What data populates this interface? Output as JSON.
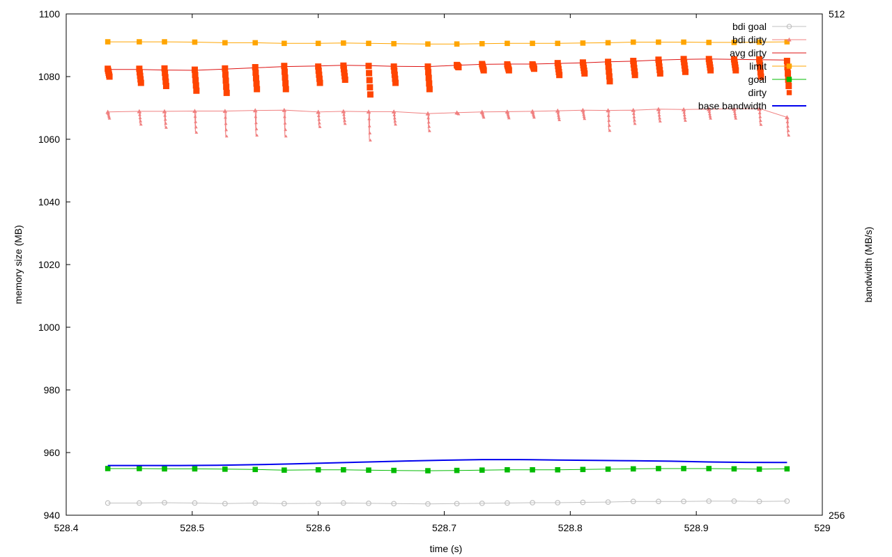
{
  "chart_data": {
    "type": "line",
    "xlabel": "time (s)",
    "ylabel": "memory size (MB)",
    "y2label": "bandwidth (MB/s)",
    "xlim": [
      528.4,
      529
    ],
    "ylim": [
      940,
      1100
    ],
    "y2lim": [
      256,
      512
    ],
    "x_ticks": [
      "528.4",
      "528.5",
      "528.6",
      "528.7",
      "528.8",
      "528.9",
      "529"
    ],
    "y_ticks": [
      "940",
      "960",
      "980",
      "1000",
      "1020",
      "1040",
      "1060",
      "1080",
      "1100"
    ],
    "y2_ticks": [
      "256",
      "512"
    ],
    "grid": false,
    "legend_position": "top-right",
    "series": [
      {
        "name": "bdi goal",
        "color": "#c0c0c0",
        "marker": "circle",
        "x": [
          528.433,
          528.458,
          528.478,
          528.502,
          528.526,
          528.55,
          528.573,
          528.6,
          528.62,
          528.64,
          528.66,
          528.687,
          528.71,
          528.73,
          528.75,
          528.77,
          528.79,
          528.81,
          528.83,
          528.85,
          528.87,
          528.89,
          528.91,
          528.93,
          528.95,
          528.972
        ],
        "y": [
          943.9,
          943.9,
          944.0,
          943.9,
          943.7,
          943.9,
          943.7,
          943.8,
          943.9,
          943.8,
          943.7,
          943.6,
          943.7,
          943.8,
          943.9,
          944.0,
          944.0,
          944.1,
          944.2,
          944.4,
          944.4,
          944.4,
          944.5,
          944.5,
          944.4,
          944.5
        ]
      },
      {
        "name": "bdi dirty",
        "color": "#f08080",
        "marker": "triangle",
        "x": [
          528.433,
          528.458,
          528.478,
          528.502,
          528.526,
          528.55,
          528.573,
          528.6,
          528.62,
          528.64,
          528.66,
          528.687,
          528.71,
          528.73,
          528.75,
          528.77,
          528.79,
          528.81,
          528.83,
          528.85,
          528.87,
          528.89,
          528.91,
          528.93,
          528.95,
          528.972
        ],
        "y": [
          1068.7,
          1068.9,
          1068.9,
          1069.0,
          1069.0,
          1069.2,
          1069.3,
          1068.7,
          1068.9,
          1068.8,
          1068.8,
          1068.2,
          1068.5,
          1068.7,
          1068.8,
          1068.9,
          1069.1,
          1069.3,
          1069.2,
          1069.3,
          1069.6,
          1069.5,
          1069.6,
          1069.7,
          1069.7,
          1067.0
        ],
        "dips": [
          1066.7,
          1064.8,
          1063.8,
          1062.2,
          1061.0,
          1061.3,
          1061.0,
          1064.0,
          1065.0,
          1059.7,
          1064.8,
          1062.7,
          1068.1,
          1067.0,
          1066.8,
          1067.0,
          1066.2,
          1066.6,
          1062.8,
          1065.0,
          1065.8,
          1066.0,
          1066.7,
          1066.7,
          1064.7,
          1061.3
        ]
      },
      {
        "name": "avg dirty",
        "color": "#dd1111",
        "marker": "none",
        "x": [
          528.433,
          528.458,
          528.478,
          528.502,
          528.526,
          528.55,
          528.573,
          528.6,
          528.62,
          528.64,
          528.66,
          528.687,
          528.71,
          528.73,
          528.75,
          528.77,
          528.79,
          528.81,
          528.83,
          528.85,
          528.87,
          528.89,
          528.91,
          528.93,
          528.95,
          528.972
        ],
        "y": [
          1082.3,
          1082.3,
          1082.1,
          1082.0,
          1082.4,
          1082.8,
          1083.2,
          1083.4,
          1083.6,
          1083.5,
          1083.3,
          1083.2,
          1083.6,
          1083.9,
          1084.0,
          1084.0,
          1084.2,
          1084.4,
          1084.7,
          1084.9,
          1085.3,
          1085.5,
          1085.6,
          1085.5,
          1085.4,
          1085.3
        ]
      },
      {
        "name": "limit",
        "color": "#ffa500",
        "marker": "square",
        "x": [
          528.433,
          528.458,
          528.478,
          528.502,
          528.526,
          528.55,
          528.573,
          528.6,
          528.62,
          528.64,
          528.66,
          528.687,
          528.71,
          528.73,
          528.75,
          528.77,
          528.79,
          528.81,
          528.83,
          528.85,
          528.87,
          528.89,
          528.91,
          528.93,
          528.95,
          528.972
        ],
        "y": [
          1091.1,
          1091.1,
          1091.1,
          1091.0,
          1090.8,
          1090.8,
          1090.6,
          1090.6,
          1090.7,
          1090.6,
          1090.5,
          1090.4,
          1090.4,
          1090.5,
          1090.6,
          1090.6,
          1090.6,
          1090.7,
          1090.8,
          1091.0,
          1091.0,
          1091.0,
          1090.9,
          1090.9,
          1091.0,
          1091.1
        ]
      },
      {
        "name": "goal",
        "color": "#00bb00",
        "marker": "square",
        "x": [
          528.433,
          528.458,
          528.478,
          528.502,
          528.526,
          528.55,
          528.573,
          528.6,
          528.62,
          528.64,
          528.66,
          528.687,
          528.71,
          528.73,
          528.75,
          528.77,
          528.79,
          528.81,
          528.83,
          528.85,
          528.87,
          528.89,
          528.91,
          528.93,
          528.95,
          528.972
        ],
        "y": [
          954.9,
          954.9,
          954.8,
          954.8,
          954.7,
          954.6,
          954.4,
          954.5,
          954.5,
          954.4,
          954.3,
          954.2,
          954.3,
          954.4,
          954.5,
          954.5,
          954.5,
          954.6,
          954.7,
          954.8,
          954.9,
          954.9,
          954.9,
          954.8,
          954.7,
          954.8
        ]
      },
      {
        "name": "dirty",
        "color": "#ff4500",
        "marker": "square",
        "x": [
          528.433,
          528.458,
          528.478,
          528.502,
          528.526,
          528.55,
          528.573,
          528.6,
          528.62,
          528.64,
          528.66,
          528.687,
          528.71,
          528.73,
          528.75,
          528.77,
          528.79,
          528.81,
          528.83,
          528.85,
          528.87,
          528.89,
          528.91,
          528.93,
          528.95,
          528.972
        ],
        "y": [
          1082.5,
          1082.5,
          1082.6,
          1082.2,
          1082.6,
          1083.0,
          1083.4,
          1083.2,
          1083.5,
          1083.4,
          1083.2,
          1083.2,
          1083.7,
          1084.0,
          1083.9,
          1083.9,
          1084.3,
          1084.5,
          1084.7,
          1085.0,
          1085.4,
          1085.6,
          1085.6,
          1085.5,
          1085.5,
          1085.0
        ],
        "dips": [
          1080.0,
          1078.0,
          1077.0,
          1075.5,
          1074.8,
          1076.0,
          1076.0,
          1078.0,
          1079.0,
          1074.3,
          1078.0,
          1076.0,
          1083.0,
          1082.0,
          1082.0,
          1082.5,
          1080.5,
          1081.0,
          1078.5,
          1080.5,
          1081.0,
          1081.5,
          1082.0,
          1082.0,
          1080.0,
          1077.0
        ]
      },
      {
        "name": "base bandwidth",
        "color": "#0000ee",
        "marker": "none",
        "axis": "y2",
        "x": [
          528.433,
          528.46,
          528.49,
          528.52,
          528.55,
          528.58,
          528.61,
          528.64,
          528.67,
          528.7,
          528.73,
          528.76,
          528.79,
          528.82,
          528.85,
          528.88,
          528.91,
          528.94,
          528.972
        ],
        "y": [
          281.4,
          281.4,
          281.4,
          281.5,
          281.8,
          282.2,
          282.7,
          283.2,
          283.7,
          284.1,
          284.4,
          284.4,
          284.2,
          284.0,
          283.8,
          283.6,
          283.2,
          283.0,
          282.9
        ]
      }
    ]
  }
}
